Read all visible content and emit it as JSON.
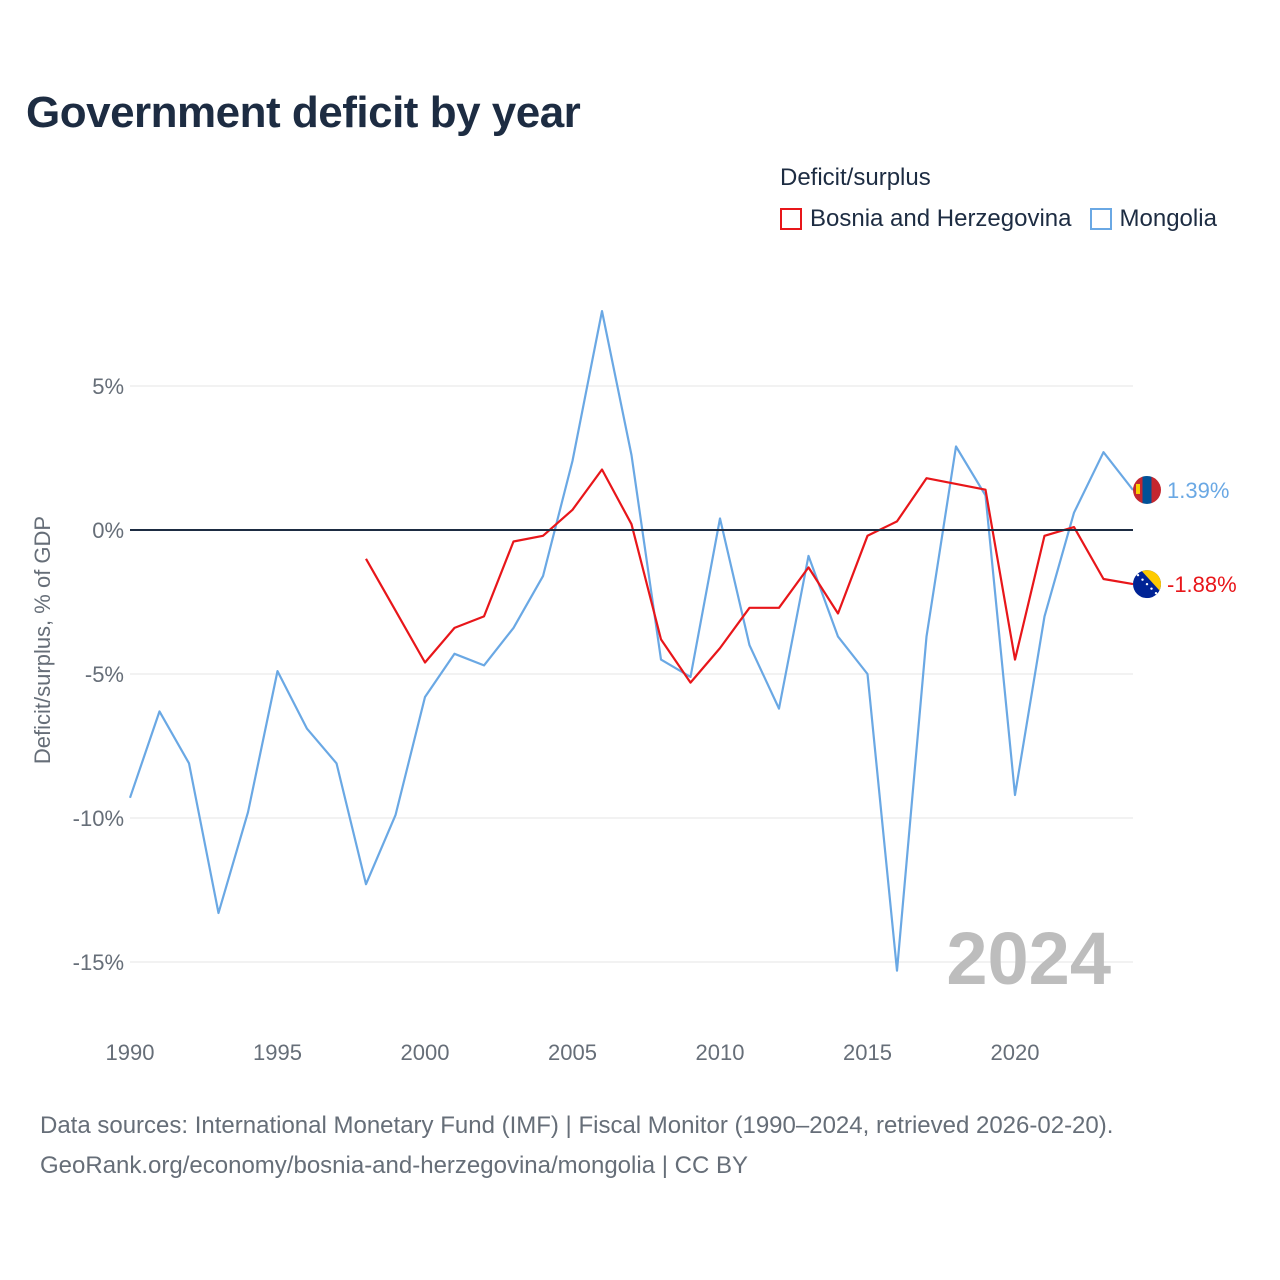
{
  "title": "Government deficit by year",
  "legend": {
    "title": "Deficit/surplus",
    "items": [
      {
        "label": "Bosnia and Herzegovina",
        "color": "#e8161a"
      },
      {
        "label": "Mongolia",
        "color": "#6aa8e4"
      }
    ]
  },
  "footer": {
    "line1": "Data sources: International Monetary Fund (IMF) | Fiscal Monitor (1990–2024, retrieved 2026-02-20).",
    "line2": "GeoRank.org/economy/bosnia-and-herzegovina/mongolia | CC BY"
  },
  "chart_data": {
    "type": "line",
    "title": "Government deficit by year",
    "xlabel": "",
    "ylabel": "Deficit/surplus, % of GDP",
    "xlim": [
      1990,
      2024
    ],
    "ylim": [
      -17,
      9
    ],
    "x_ticks": [
      1990,
      1995,
      2000,
      2005,
      2010,
      2015,
      2020
    ],
    "y_ticks": [
      5,
      0,
      -5,
      -10,
      -15
    ],
    "y_tick_labels": [
      "5%",
      "0%",
      "-5%",
      "-10%",
      "-15%"
    ],
    "grid": true,
    "legend_position": "top-right",
    "year_label": "2024",
    "series": [
      {
        "name": "Mongolia",
        "color": "#6aa8e4",
        "end_label": "1.39%",
        "x": [
          1990,
          1991,
          1992,
          1993,
          1994,
          1995,
          1996,
          1997,
          1998,
          1999,
          2000,
          2001,
          2002,
          2003,
          2004,
          2005,
          2006,
          2007,
          2008,
          2009,
          2010,
          2011,
          2012,
          2013,
          2014,
          2015,
          2016,
          2017,
          2018,
          2019,
          2020,
          2021,
          2022,
          2023,
          2024
        ],
        "values": [
          -9.3,
          -6.3,
          -8.1,
          -13.3,
          -9.8,
          -4.9,
          -6.9,
          -8.1,
          -12.3,
          -9.9,
          -5.8,
          -4.3,
          -4.7,
          -3.4,
          -1.6,
          2.4,
          7.6,
          2.6,
          -4.5,
          -5.1,
          0.4,
          -4.0,
          -6.2,
          -0.9,
          -3.7,
          -5.0,
          -15.3,
          -3.7,
          2.9,
          1.2,
          -9.2,
          -3.0,
          0.6,
          2.7,
          1.39
        ]
      },
      {
        "name": "Bosnia and Herzegovina",
        "color": "#e8161a",
        "end_label": "-1.88%",
        "x": [
          1998,
          1999,
          2000,
          2001,
          2002,
          2003,
          2004,
          2005,
          2006,
          2007,
          2008,
          2009,
          2010,
          2011,
          2012,
          2013,
          2014,
          2015,
          2016,
          2017,
          2018,
          2019,
          2020,
          2021,
          2022,
          2023,
          2024
        ],
        "values": [
          -1.0,
          -2.8,
          -4.6,
          -3.4,
          -3.0,
          -0.4,
          -0.2,
          0.7,
          2.1,
          0.2,
          -3.8,
          -5.3,
          -4.1,
          -2.7,
          -2.7,
          -1.3,
          -2.9,
          -0.2,
          0.3,
          1.8,
          1.6,
          1.4,
          -4.5,
          -0.2,
          0.1,
          -1.7,
          -1.88
        ]
      }
    ]
  }
}
